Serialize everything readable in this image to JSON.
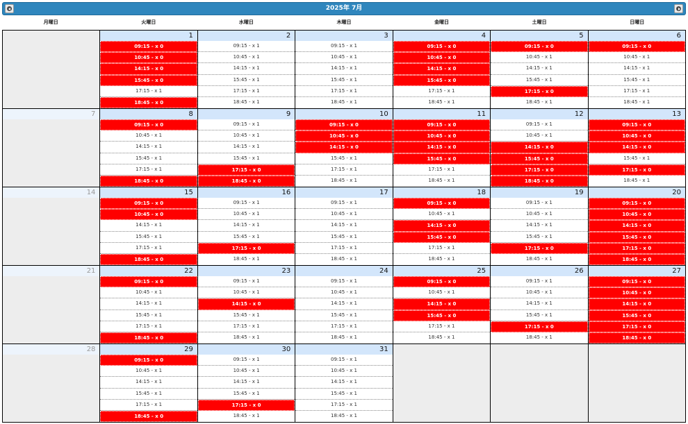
{
  "header": {
    "title": "2025年 7月"
  },
  "weekdays": [
    "月曜日",
    "火曜日",
    "水曜日",
    "木曜日",
    "金曜日",
    "土曜日",
    "日曜日"
  ],
  "colors": {
    "header_bg": "#2f86bd",
    "full_slot": "#ff0000",
    "day_header": "#d3e6fb"
  },
  "icons": {
    "prev": "circle-arrow-left-icon",
    "next": "circle-arrow-right-icon"
  },
  "weeks": [
    [
      null,
      {
        "day": "1",
        "slots": [
          {
            "text": "09:15 - x 0",
            "full": true
          },
          {
            "text": "10:45 - x 0",
            "full": true
          },
          {
            "text": "14:15 - x 0",
            "full": true
          },
          {
            "text": "15:45 - x 0",
            "full": true
          },
          {
            "text": "17:15 - x 1",
            "full": false
          },
          {
            "text": "18:45 - x 0",
            "full": true
          }
        ]
      },
      {
        "day": "2",
        "slots": [
          {
            "text": "09:15 - x 1",
            "full": false
          },
          {
            "text": "10:45 - x 1",
            "full": false
          },
          {
            "text": "14:15 - x 1",
            "full": false
          },
          {
            "text": "15:45 - x 1",
            "full": false
          },
          {
            "text": "17:15 - x 1",
            "full": false
          },
          {
            "text": "18:45 - x 1",
            "full": false
          }
        ]
      },
      {
        "day": "3",
        "slots": [
          {
            "text": "09:15 - x 1",
            "full": false
          },
          {
            "text": "10:45 - x 1",
            "full": false
          },
          {
            "text": "14:15 - x 1",
            "full": false
          },
          {
            "text": "15:45 - x 1",
            "full": false
          },
          {
            "text": "17:15 - x 1",
            "full": false
          },
          {
            "text": "18:45 - x 1",
            "full": false
          }
        ]
      },
      {
        "day": "4",
        "slots": [
          {
            "text": "09:15 - x 0",
            "full": true
          },
          {
            "text": "10:45 - x 0",
            "full": true
          },
          {
            "text": "14:15 - x 0",
            "full": true
          },
          {
            "text": "15:45 - x 0",
            "full": true
          },
          {
            "text": "17:15 - x 1",
            "full": false
          },
          {
            "text": "18:45 - x 1",
            "full": false
          }
        ]
      },
      {
        "day": "5",
        "slots": [
          {
            "text": "09:15 - x 0",
            "full": true
          },
          {
            "text": "10:45 - x 1",
            "full": false
          },
          {
            "text": "14:15 - x 1",
            "full": false
          },
          {
            "text": "15:45 - x 1",
            "full": false
          },
          {
            "text": "17:15 - x 0",
            "full": true
          },
          {
            "text": "18:45 - x 1",
            "full": false
          }
        ]
      },
      {
        "day": "6",
        "slots": [
          {
            "text": "09:15 - x 0",
            "full": true
          },
          {
            "text": "10:45 - x 1",
            "full": false
          },
          {
            "text": "14:15 - x 1",
            "full": false
          },
          {
            "text": "15:45 - x 1",
            "full": false
          },
          {
            "text": "17:15 - x 1",
            "full": false
          },
          {
            "text": "18:45 - x 1",
            "full": false
          }
        ]
      }
    ],
    [
      {
        "day": "7",
        "monday": true,
        "slots": []
      },
      {
        "day": "8",
        "slots": [
          {
            "text": "09:15 - x 0",
            "full": true
          },
          {
            "text": "10:45 - x 1",
            "full": false
          },
          {
            "text": "14:15 - x 1",
            "full": false
          },
          {
            "text": "15:45 - x 1",
            "full": false
          },
          {
            "text": "17:15 - x 1",
            "full": false
          },
          {
            "text": "18:45 - x 0",
            "full": true
          }
        ]
      },
      {
        "day": "9",
        "slots": [
          {
            "text": "09:15 - x 1",
            "full": false
          },
          {
            "text": "10:45 - x 1",
            "full": false
          },
          {
            "text": "14:15 - x 1",
            "full": false
          },
          {
            "text": "15:45 - x 1",
            "full": false
          },
          {
            "text": "17:15 - x 0",
            "full": true
          },
          {
            "text": "18:45 - x 0",
            "full": true
          }
        ]
      },
      {
        "day": "10",
        "slots": [
          {
            "text": "09:15 - x 0",
            "full": true
          },
          {
            "text": "10:45 - x 0",
            "full": true
          },
          {
            "text": "14:15 - x 0",
            "full": true
          },
          {
            "text": "15:45 - x 1",
            "full": false
          },
          {
            "text": "17:15 - x 1",
            "full": false
          },
          {
            "text": "18:45 - x 1",
            "full": false
          }
        ]
      },
      {
        "day": "11",
        "slots": [
          {
            "text": "09:15 - x 0",
            "full": true
          },
          {
            "text": "10:45 - x 0",
            "full": true
          },
          {
            "text": "14:15 - x 0",
            "full": true
          },
          {
            "text": "15:45 - x 0",
            "full": true
          },
          {
            "text": "17:15 - x 1",
            "full": false
          },
          {
            "text": "18:45 - x 1",
            "full": false
          }
        ]
      },
      {
        "day": "12",
        "slots": [
          {
            "text": "09:15 - x 1",
            "full": false
          },
          {
            "text": "10:45 - x 1",
            "full": false
          },
          {
            "text": "14:15 - x 0",
            "full": true
          },
          {
            "text": "15:45 - x 0",
            "full": true
          },
          {
            "text": "17:15 - x 0",
            "full": true
          },
          {
            "text": "18:45 - x 0",
            "full": true
          }
        ]
      },
      {
        "day": "13",
        "slots": [
          {
            "text": "09:15 - x 0",
            "full": true
          },
          {
            "text": "10:45 - x 0",
            "full": true
          },
          {
            "text": "14:15 - x 0",
            "full": true
          },
          {
            "text": "15:45 - x 1",
            "full": false
          },
          {
            "text": "17:15 - x 0",
            "full": true
          },
          {
            "text": "18:45 - x 1",
            "full": false
          }
        ]
      }
    ],
    [
      {
        "day": "14",
        "monday": true,
        "slots": []
      },
      {
        "day": "15",
        "slots": [
          {
            "text": "09:15 - x 0",
            "full": true
          },
          {
            "text": "10:45 - x 0",
            "full": true
          },
          {
            "text": "14:15 - x 1",
            "full": false
          },
          {
            "text": "15:45 - x 1",
            "full": false
          },
          {
            "text": "17:15 - x 1",
            "full": false
          },
          {
            "text": "18:45 - x 0",
            "full": true
          }
        ]
      },
      {
        "day": "16",
        "slots": [
          {
            "text": "09:15 - x 1",
            "full": false
          },
          {
            "text": "10:45 - x 1",
            "full": false
          },
          {
            "text": "14:15 - x 1",
            "full": false
          },
          {
            "text": "15:45 - x 1",
            "full": false
          },
          {
            "text": "17:15 - x 0",
            "full": true
          },
          {
            "text": "18:45 - x 1",
            "full": false
          }
        ]
      },
      {
        "day": "17",
        "slots": [
          {
            "text": "09:15 - x 1",
            "full": false
          },
          {
            "text": "10:45 - x 1",
            "full": false
          },
          {
            "text": "14:15 - x 1",
            "full": false
          },
          {
            "text": "15:45 - x 1",
            "full": false
          },
          {
            "text": "17:15 - x 1",
            "full": false
          },
          {
            "text": "18:45 - x 1",
            "full": false
          }
        ]
      },
      {
        "day": "18",
        "slots": [
          {
            "text": "09:15 - x 0",
            "full": true
          },
          {
            "text": "10:45 - x 1",
            "full": false
          },
          {
            "text": "14:15 - x 0",
            "full": true
          },
          {
            "text": "15:45 - x 0",
            "full": true
          },
          {
            "text": "17:15 - x 1",
            "full": false
          },
          {
            "text": "18:45 - x 1",
            "full": false
          }
        ]
      },
      {
        "day": "19",
        "slots": [
          {
            "text": "09:15 - x 1",
            "full": false
          },
          {
            "text": "10:45 - x 1",
            "full": false
          },
          {
            "text": "14:15 - x 1",
            "full": false
          },
          {
            "text": "15:45 - x 1",
            "full": false
          },
          {
            "text": "17:15 - x 0",
            "full": true
          },
          {
            "text": "18:45 - x 1",
            "full": false
          }
        ]
      },
      {
        "day": "20",
        "slots": [
          {
            "text": "09:15 - x 0",
            "full": true
          },
          {
            "text": "10:45 - x 0",
            "full": true
          },
          {
            "text": "14:15 - x 0",
            "full": true
          },
          {
            "text": "15:45 - x 0",
            "full": true
          },
          {
            "text": "17:15 - x 0",
            "full": true
          },
          {
            "text": "18:45 - x 0",
            "full": true
          }
        ]
      }
    ],
    [
      {
        "day": "21",
        "monday": true,
        "slots": []
      },
      {
        "day": "22",
        "slots": [
          {
            "text": "09:15 - x 0",
            "full": true
          },
          {
            "text": "10:45 - x 1",
            "full": false
          },
          {
            "text": "14:15 - x 1",
            "full": false
          },
          {
            "text": "15:45 - x 1",
            "full": false
          },
          {
            "text": "17:15 - x 1",
            "full": false
          },
          {
            "text": "18:45 - x 0",
            "full": true
          }
        ]
      },
      {
        "day": "23",
        "slots": [
          {
            "text": "09:15 - x 1",
            "full": false
          },
          {
            "text": "10:45 - x 1",
            "full": false
          },
          {
            "text": "14:15 - x 0",
            "full": true
          },
          {
            "text": "15:45 - x 1",
            "full": false
          },
          {
            "text": "17:15 - x 1",
            "full": false
          },
          {
            "text": "18:45 - x 1",
            "full": false
          }
        ]
      },
      {
        "day": "24",
        "slots": [
          {
            "text": "09:15 - x 1",
            "full": false
          },
          {
            "text": "10:45 - x 1",
            "full": false
          },
          {
            "text": "14:15 - x 1",
            "full": false
          },
          {
            "text": "15:45 - x 1",
            "full": false
          },
          {
            "text": "17:15 - x 1",
            "full": false
          },
          {
            "text": "18:45 - x 1",
            "full": false
          }
        ]
      },
      {
        "day": "25",
        "slots": [
          {
            "text": "09:15 - x 0",
            "full": true
          },
          {
            "text": "10:45 - x 1",
            "full": false
          },
          {
            "text": "14:15 - x 0",
            "full": true
          },
          {
            "text": "15:45 - x 0",
            "full": true
          },
          {
            "text": "17:15 - x 1",
            "full": false
          },
          {
            "text": "18:45 - x 1",
            "full": false
          }
        ]
      },
      {
        "day": "26",
        "slots": [
          {
            "text": "09:15 - x 1",
            "full": false
          },
          {
            "text": "10:45 - x 1",
            "full": false
          },
          {
            "text": "14:15 - x 1",
            "full": false
          },
          {
            "text": "15:45 - x 1",
            "full": false
          },
          {
            "text": "17:15 - x 0",
            "full": true
          },
          {
            "text": "18:45 - x 1",
            "full": false
          }
        ]
      },
      {
        "day": "27",
        "slots": [
          {
            "text": "09:15 - x 0",
            "full": true
          },
          {
            "text": "10:45 - x 0",
            "full": true
          },
          {
            "text": "14:15 - x 0",
            "full": true
          },
          {
            "text": "15:45 - x 0",
            "full": true
          },
          {
            "text": "17:15 - x 0",
            "full": true
          },
          {
            "text": "18:45 - x 0",
            "full": true
          }
        ]
      }
    ],
    [
      {
        "day": "28",
        "monday": true,
        "slots": []
      },
      {
        "day": "29",
        "slots": [
          {
            "text": "09:15 - x 0",
            "full": true
          },
          {
            "text": "10:45 - x 1",
            "full": false
          },
          {
            "text": "14:15 - x 1",
            "full": false
          },
          {
            "text": "15:45 - x 1",
            "full": false
          },
          {
            "text": "17:15 - x 1",
            "full": false
          },
          {
            "text": "18:45 - x 0",
            "full": true
          }
        ]
      },
      {
        "day": "30",
        "slots": [
          {
            "text": "09:15 - x 1",
            "full": false
          },
          {
            "text": "10:45 - x 1",
            "full": false
          },
          {
            "text": "14:15 - x 1",
            "full": false
          },
          {
            "text": "15:45 - x 1",
            "full": false
          },
          {
            "text": "17:15 - x 0",
            "full": true
          },
          {
            "text": "18:45 - x 1",
            "full": false
          }
        ]
      },
      {
        "day": "31",
        "slots": [
          {
            "text": "09:15 - x 1",
            "full": false
          },
          {
            "text": "10:45 - x 1",
            "full": false
          },
          {
            "text": "14:15 - x 1",
            "full": false
          },
          {
            "text": "15:45 - x 1",
            "full": false
          },
          {
            "text": "17:15 - x 1",
            "full": false
          },
          {
            "text": "18:45 - x 1",
            "full": false
          }
        ]
      },
      null,
      null,
      null
    ]
  ]
}
